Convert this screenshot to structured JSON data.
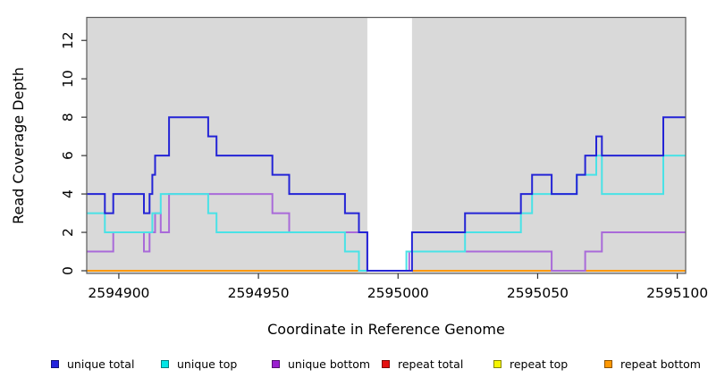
{
  "figure": {
    "background": "#ffffff",
    "plot_background": "#d9d9d9"
  },
  "y_axis": {
    "label": "Read Coverage Depth",
    "ticks": [
      0,
      2,
      4,
      6,
      8,
      10,
      12
    ]
  },
  "x_axis": {
    "label": "Coordinate in Reference Genome",
    "ticks": [
      2594900,
      2594950,
      2595000,
      2595050,
      2595100
    ]
  },
  "legend": {
    "items": [
      {
        "label": "unique total",
        "color": "#2222dd"
      },
      {
        "label": "unique top",
        "color": "#00e5e5"
      },
      {
        "label": "unique bottom",
        "color": "#9a1fd0"
      },
      {
        "label": "repeat total",
        "color": "#e51010"
      },
      {
        "label": "repeat top",
        "color": "#f5f500"
      },
      {
        "label": "repeat bottom",
        "color": "#ff9800"
      }
    ]
  },
  "chart_data": {
    "type": "line",
    "subtype": "step-after",
    "title": "",
    "xlabel": "Coordinate in Reference Genome",
    "ylabel": "Read Coverage Depth",
    "xlim": [
      2594888.5,
      2595103
    ],
    "ylim": [
      0,
      13.2
    ],
    "grid": false,
    "legend_position": "bottom",
    "background": "#d9d9d9",
    "gap_region": {
      "from": 2594989,
      "to": 2595005,
      "color": "#ffffff"
    },
    "series": [
      {
        "name": "unique total",
        "color": "#2424d6",
        "width": 2,
        "points": [
          [
            2594888.5,
            4
          ],
          [
            2594895,
            3
          ],
          [
            2594898,
            4
          ],
          [
            2594909,
            3
          ],
          [
            2594911,
            4
          ],
          [
            2594912,
            5
          ],
          [
            2594913,
            6
          ],
          [
            2594918,
            8
          ],
          [
            2594932,
            7
          ],
          [
            2594935,
            6
          ],
          [
            2594955,
            5
          ],
          [
            2594961,
            4
          ],
          [
            2594981,
            3
          ],
          [
            2594986,
            2
          ],
          [
            2594989,
            0
          ],
          [
            2595005,
            2
          ],
          [
            2595024,
            3
          ],
          [
            2595044,
            4
          ],
          [
            2595048,
            5
          ],
          [
            2595055,
            4
          ],
          [
            2595064,
            5
          ],
          [
            2595067,
            6
          ],
          [
            2595071,
            7
          ],
          [
            2595073,
            6
          ],
          [
            2595095,
            8
          ]
        ]
      },
      {
        "name": "unique top",
        "color": "#49e2e6",
        "width": 2,
        "points": [
          [
            2594888.5,
            3
          ],
          [
            2594895,
            2
          ],
          [
            2594912,
            3
          ],
          [
            2594915,
            4
          ],
          [
            2594932,
            3
          ],
          [
            2594935,
            2
          ],
          [
            2594981,
            1
          ],
          [
            2594986,
            0
          ],
          [
            2595003,
            1
          ],
          [
            2595024,
            2
          ],
          [
            2595044,
            3
          ],
          [
            2595048,
            4
          ],
          [
            2595064,
            5
          ],
          [
            2595071,
            6
          ],
          [
            2595073,
            4
          ],
          [
            2595095,
            6
          ]
        ]
      },
      {
        "name": "unique bottom",
        "color": "#a96ad9",
        "width": 2,
        "points": [
          [
            2594888.5,
            1
          ],
          [
            2594898,
            2
          ],
          [
            2594909,
            1
          ],
          [
            2594911,
            2
          ],
          [
            2594913,
            3
          ],
          [
            2594915,
            2
          ],
          [
            2594918,
            4
          ],
          [
            2594955,
            3
          ],
          [
            2594961,
            2
          ],
          [
            2594989,
            0
          ],
          [
            2595004,
            1
          ],
          [
            2595055,
            0
          ],
          [
            2595067,
            1
          ],
          [
            2595073,
            2
          ]
        ]
      },
      {
        "name": "repeat total",
        "color": "#e51010",
        "width": 2,
        "points": [
          [
            2594888.5,
            0
          ]
        ]
      },
      {
        "name": "repeat top",
        "color": "#f5f500",
        "width": 2,
        "points": [
          [
            2594888.5,
            0
          ]
        ]
      },
      {
        "name": "repeat bottom",
        "color": "#ff9800",
        "width": 2,
        "points": [
          [
            2594888.5,
            0
          ]
        ]
      }
    ]
  }
}
